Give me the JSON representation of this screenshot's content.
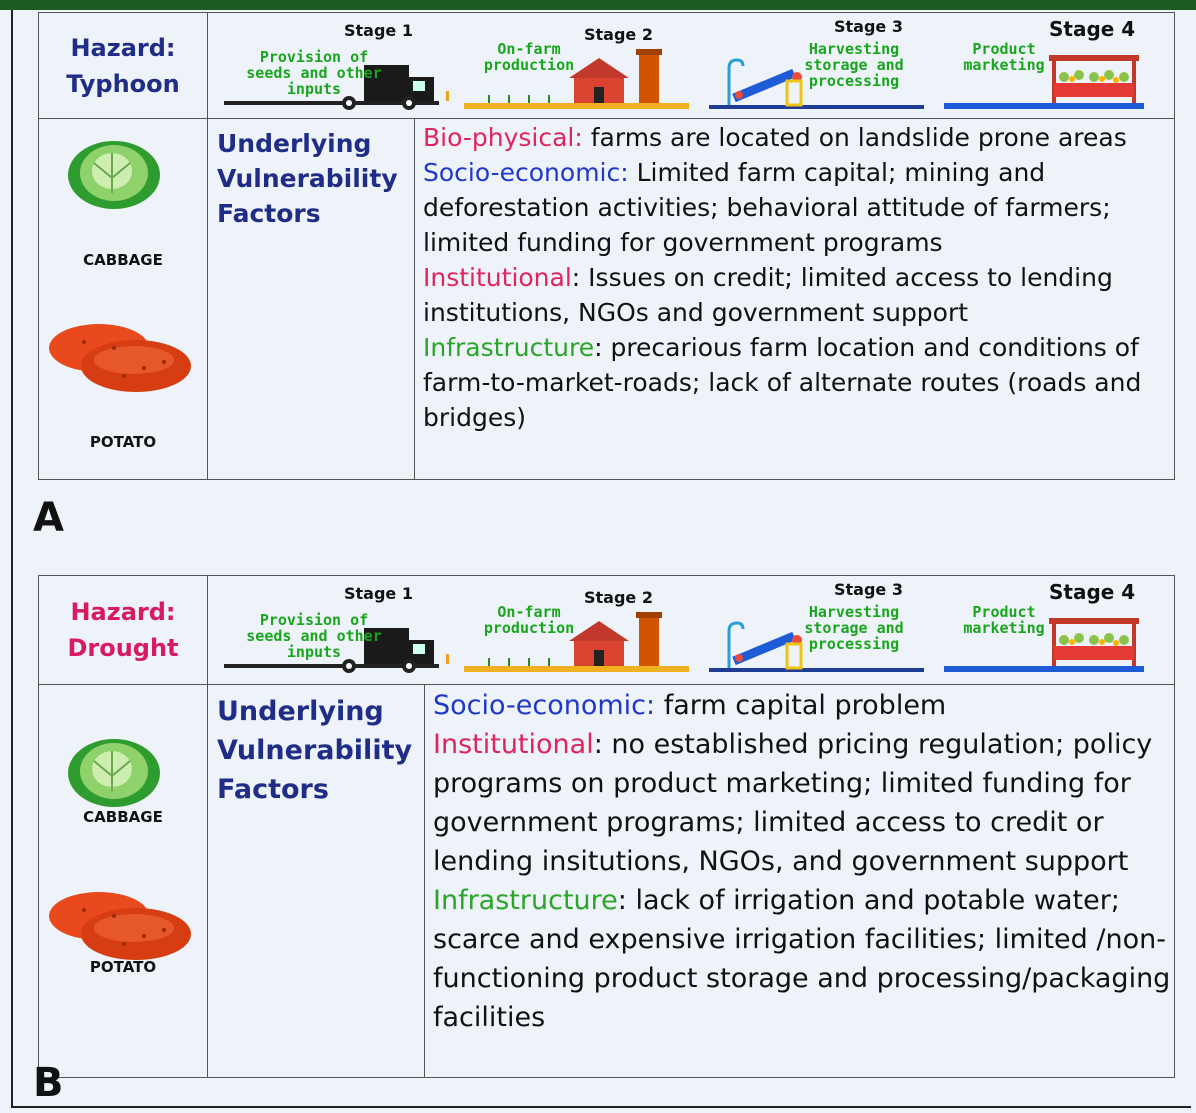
{
  "panels": [
    {
      "label": "A",
      "hazard": {
        "prefix": "Hazard:",
        "name": "Typhoon"
      },
      "stages": [
        {
          "title": "Stage 1",
          "caption": "Provision of seeds and other inputs"
        },
        {
          "title": "Stage 2",
          "caption": "On-farm production"
        },
        {
          "title": "Stage 3",
          "caption": "Harvesting storage and processing"
        },
        {
          "title": "Stage 4",
          "caption": "Product marketing"
        }
      ],
      "crops": [
        "CABBAGE",
        "POTATO"
      ],
      "factors_heading": "Underlying Vulnerability Factors",
      "factors": [
        {
          "category": "Bio-physical:",
          "text": " farms are located on landslide prone areas"
        },
        {
          "category": "Socio-economic:",
          "text": " Limited farm capital; mining and deforestation activities; behavioral attitude of farmers; limited funding for government programs"
        },
        {
          "category": "Institutional",
          "text": ": Issues on credit; limited access to lending institutions, NGOs and government support"
        },
        {
          "category": "Infrastructure",
          "text": ": precarious farm location and conditions of farm-to-market-roads; lack of alternate routes (roads and bridges)"
        }
      ]
    },
    {
      "label": "B",
      "hazard": {
        "prefix": "Hazard:",
        "name": "Drought"
      },
      "stages": [
        {
          "title": "Stage 1",
          "caption": "Provision of seeds and other inputs"
        },
        {
          "title": "Stage 2",
          "caption": "On-farm production"
        },
        {
          "title": "Stage 3",
          "caption": "Harvesting storage and processing"
        },
        {
          "title": "Stage 4",
          "caption": "Product marketing"
        }
      ],
      "crops": [
        "CABBAGE",
        "POTATO"
      ],
      "factors_heading": "Underlying Vulnerability Factors",
      "factors": [
        {
          "category": "Socio-economic:",
          "text": " farm capital problem"
        },
        {
          "category": "Institutional",
          "text": ": no established pricing regulation; policy programs on product marketing; limited funding for government programs; limited access to credit or lending insitutions, NGOs, and government support"
        },
        {
          "category": "Infrastructure",
          "text": ": lack of irrigation and potable water; scarce and expensive irrigation facilities; limited /non-functioning product storage and processing/packaging facilities"
        }
      ]
    }
  ]
}
